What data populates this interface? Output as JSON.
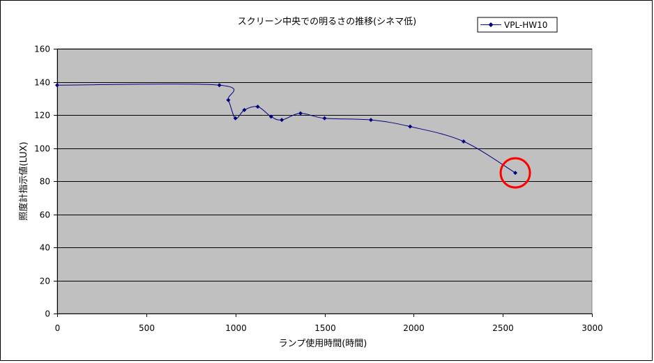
{
  "chart_data": {
    "type": "line",
    "title": "スクリーン中央での明るさの推移(シネマ低)",
    "xlabel": "ランプ使用時間(時間)",
    "ylabel": "照度計指示値(LUX)",
    "xlim": [
      0,
      3000
    ],
    "ylim": [
      0,
      160
    ],
    "x_ticks": [
      0,
      500,
      1000,
      1500,
      2000,
      2500,
      3000
    ],
    "y_ticks": [
      0,
      20,
      40,
      60,
      80,
      100,
      120,
      140,
      160
    ],
    "grid": "horizontal",
    "legend_position": "top-right",
    "plot_background": "#c0c0c0",
    "series": [
      {
        "name": "VPL-HW10",
        "color": "#000080",
        "x": [
          0,
          910,
          960,
          1000,
          1050,
          1125,
          1200,
          1260,
          1365,
          1500,
          1760,
          1980,
          2280,
          2570
        ],
        "y": [
          138,
          138,
          129,
          118,
          123,
          125,
          119,
          117,
          121,
          118,
          117,
          113,
          104,
          85
        ]
      }
    ],
    "annotations": [
      {
        "type": "circle",
        "color": "#ff0000",
        "x": 2570,
        "y": 85
      }
    ]
  }
}
